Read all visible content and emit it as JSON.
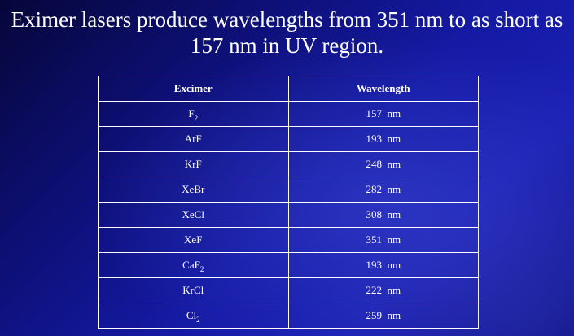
{
  "slide": {
    "title_line1": "Eximer lasers produce wavelengths from 351 nm to as short as",
    "title_line2": "157 nm in UV region."
  },
  "table": {
    "headers": [
      "Excimer",
      "Wavelength"
    ],
    "rows": [
      {
        "excimer": "F",
        "sub": "2",
        "wavelength": "157  nm"
      },
      {
        "excimer": "ArF",
        "sub": "",
        "wavelength": "193  nm"
      },
      {
        "excimer": "KrF",
        "sub": "",
        "wavelength": "248  nm"
      },
      {
        "excimer": "XeBr",
        "sub": "",
        "wavelength": "282  nm"
      },
      {
        "excimer": "XeCl",
        "sub": "",
        "wavelength": "308  nm"
      },
      {
        "excimer": "XeF",
        "sub": "",
        "wavelength": "351  nm"
      },
      {
        "excimer": "CaF",
        "sub": "2",
        "wavelength": "193  nm"
      },
      {
        "excimer": "KrCl",
        "sub": "",
        "wavelength": "222  nm"
      },
      {
        "excimer": "Cl",
        "sub": "2",
        "wavelength": "259  nm"
      }
    ]
  },
  "colors": {
    "background_dark": "#06063a",
    "background_mid": "#141aa3",
    "text": "#ffffff",
    "table_border": "#ffffff"
  }
}
